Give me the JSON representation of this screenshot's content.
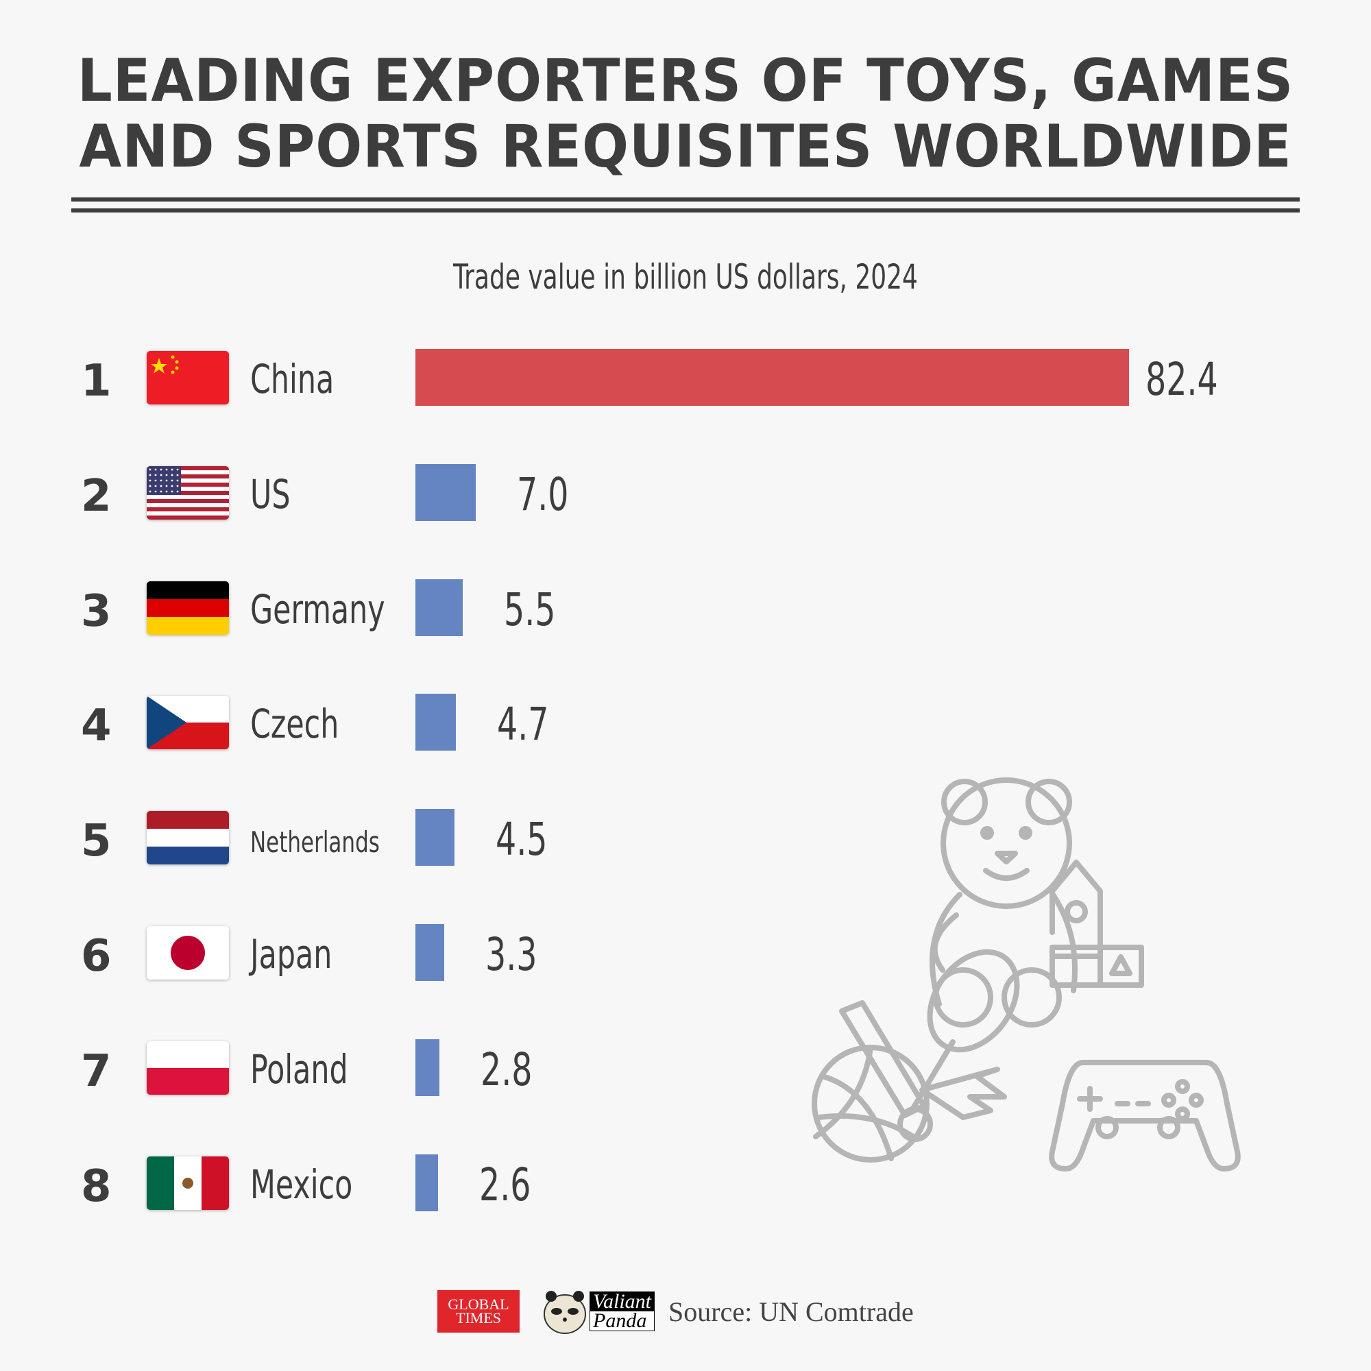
{
  "title_lines": [
    "LEADING EXPORTERS OF TOYS, GAMES",
    "AND SPORTS REQUISITES WORLDWIDE"
  ],
  "chart_data": {
    "type": "bar",
    "orientation": "horizontal",
    "subtitle": "Trade value in billion US dollars, 2024",
    "ranks": [
      "1",
      "2",
      "3",
      "4",
      "5",
      "6",
      "7",
      "8"
    ],
    "categories": [
      "China",
      "US",
      "Germany",
      "Czech",
      "Netherlands",
      "Japan",
      "Poland",
      "Mexico"
    ],
    "values": [
      82.4,
      7.0,
      5.5,
      4.7,
      4.5,
      3.3,
      2.8,
      2.6
    ],
    "value_labels": [
      "82.4",
      "7.0",
      "5.5",
      "4.7",
      "4.5",
      "3.3",
      "2.8",
      "2.6"
    ],
    "highlight_color": "#d64b50",
    "bar_color": "#6585c2",
    "flags": [
      "china",
      "us",
      "germany",
      "czech",
      "netherlands",
      "japan",
      "poland",
      "mexico"
    ]
  },
  "footer": {
    "logo_global_times": "GLOBAL TIMES",
    "logo_valiant_panda": [
      "Valiant",
      "Panda"
    ],
    "source": "Source: UN Comtrade"
  }
}
